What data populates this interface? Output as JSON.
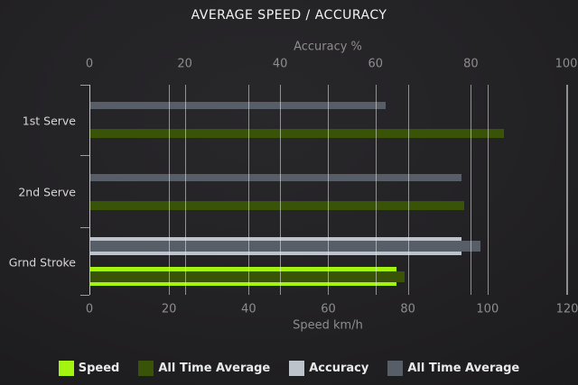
{
  "chart_data": {
    "type": "bar",
    "orientation": "horizontal",
    "title": "AVERAGE SPEED / ACCURACY",
    "categories": [
      "1st Serve",
      "2nd Serve",
      "Grnd Stroke"
    ],
    "axes": {
      "top": {
        "label": "Accuracy %",
        "ticks": [
          0,
          20,
          40,
          60,
          80,
          100
        ],
        "range": [
          0,
          100
        ]
      },
      "bottom": {
        "label": "Speed km/h",
        "ticks": [
          0,
          20,
          40,
          60,
          80,
          100,
          120
        ],
        "range": [
          0,
          120
        ]
      }
    },
    "series": [
      {
        "name": "Speed",
        "axis": "bottom",
        "role": "current",
        "color": "#a3f511",
        "values": [
          null,
          null,
          77
        ]
      },
      {
        "name": "All Time Average",
        "axis": "bottom",
        "role": "average",
        "color": "#3a5407",
        "values": [
          104,
          94,
          79
        ]
      },
      {
        "name": "Accuracy",
        "axis": "top",
        "role": "current",
        "color": "#bcc3cb",
        "values": [
          null,
          null,
          78
        ]
      },
      {
        "name": "All Time Average",
        "axis": "top",
        "role": "average",
        "color": "#575e67",
        "values": [
          62,
          78,
          82
        ]
      }
    ],
    "legend": {
      "position": "bottom",
      "items": [
        "Speed",
        "All Time Average",
        "Accuracy",
        "All Time Average"
      ]
    },
    "grid": true,
    "colors": {
      "background": "#222124",
      "gridline": "#ebebeb",
      "tick_text": "#8d8d8d",
      "category_text": "#d6d6d6",
      "title_text": "#f3f3f3"
    }
  }
}
